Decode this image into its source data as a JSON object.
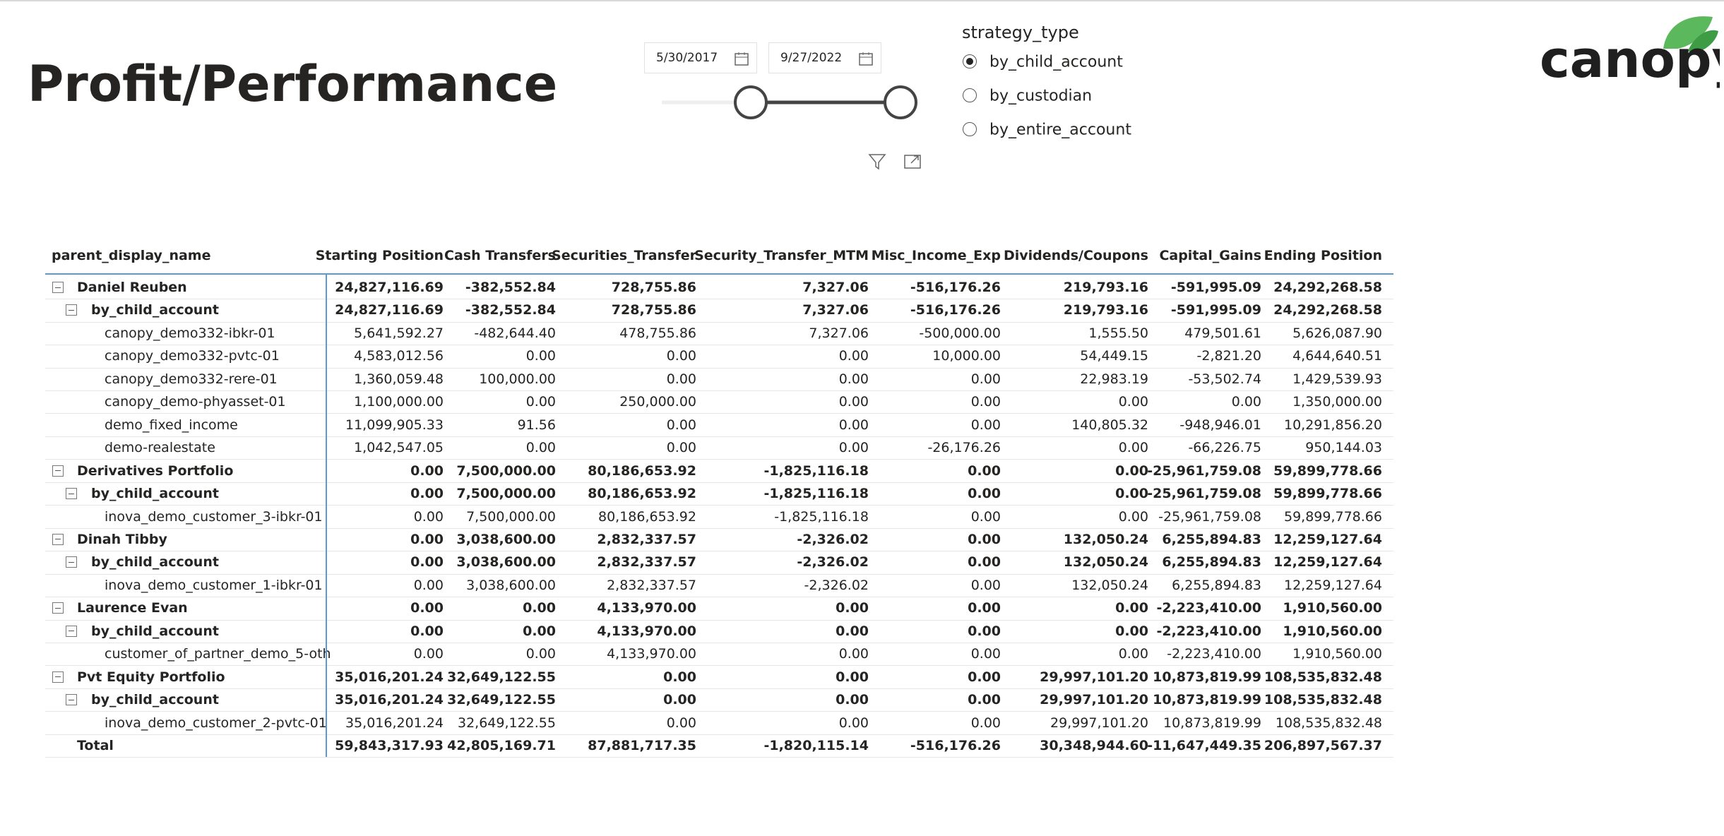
{
  "header": {
    "title": "Profit/Performance",
    "logo": "canopy"
  },
  "date_filter": {
    "start": "5/30/2017",
    "end": "9/27/2022"
  },
  "strategy_filter": {
    "label": "strategy_type",
    "options": [
      "by_child_account",
      "by_custodian",
      "by_entire_account"
    ],
    "selected": 0
  },
  "table": {
    "columns": [
      "parent_display_name",
      "Starting Position",
      "Cash Transfers",
      "Securities_Transfer",
      "Security_Transfer_MTM",
      "Misc_Income_Exp",
      "Dividends/Coupons",
      "Capital_Gains",
      "Ending Position"
    ],
    "groups": [
      {
        "name": "Daniel Reuben",
        "values": [
          "24,827,116.69",
          "-382,552.84",
          "728,755.86",
          "7,327.06",
          "-516,176.26",
          "219,793.16",
          "-591,995.09",
          "24,292,268.58"
        ],
        "subgroups": [
          {
            "name": "by_child_account",
            "values": [
              "24,827,116.69",
              "-382,552.84",
              "728,755.86",
              "7,327.06",
              "-516,176.26",
              "219,793.16",
              "-591,995.09",
              "24,292,268.58"
            ],
            "rows": [
              {
                "name": "canopy_demo332-ibkr-01",
                "values": [
                  "5,641,592.27",
                  "-482,644.40",
                  "478,755.86",
                  "7,327.06",
                  "-500,000.00",
                  "1,555.50",
                  "479,501.61",
                  "5,626,087.90"
                ]
              },
              {
                "name": "canopy_demo332-pvtc-01",
                "values": [
                  "4,583,012.56",
                  "0.00",
                  "0.00",
                  "0.00",
                  "10,000.00",
                  "54,449.15",
                  "-2,821.20",
                  "4,644,640.51"
                ]
              },
              {
                "name": "canopy_demo332-rere-01",
                "values": [
                  "1,360,059.48",
                  "100,000.00",
                  "0.00",
                  "0.00",
                  "0.00",
                  "22,983.19",
                  "-53,502.74",
                  "1,429,539.93"
                ]
              },
              {
                "name": "canopy_demo-phyasset-01",
                "values": [
                  "1,100,000.00",
                  "0.00",
                  "250,000.00",
                  "0.00",
                  "0.00",
                  "0.00",
                  "0.00",
                  "1,350,000.00"
                ]
              },
              {
                "name": "demo_fixed_income",
                "values": [
                  "11,099,905.33",
                  "91.56",
                  "0.00",
                  "0.00",
                  "0.00",
                  "140,805.32",
                  "-948,946.01",
                  "10,291,856.20"
                ]
              },
              {
                "name": "demo-realestate",
                "values": [
                  "1,042,547.05",
                  "0.00",
                  "0.00",
                  "0.00",
                  "-26,176.26",
                  "0.00",
                  "-66,226.75",
                  "950,144.03"
                ]
              }
            ]
          }
        ]
      },
      {
        "name": "Derivatives Portfolio",
        "values": [
          "0.00",
          "7,500,000.00",
          "80,186,653.92",
          "-1,825,116.18",
          "0.00",
          "0.00",
          "-25,961,759.08",
          "59,899,778.66"
        ],
        "subgroups": [
          {
            "name": "by_child_account",
            "values": [
              "0.00",
              "7,500,000.00",
              "80,186,653.92",
              "-1,825,116.18",
              "0.00",
              "0.00",
              "-25,961,759.08",
              "59,899,778.66"
            ],
            "rows": [
              {
                "name": "inova_demo_customer_3-ibkr-01",
                "values": [
                  "0.00",
                  "7,500,000.00",
                  "80,186,653.92",
                  "-1,825,116.18",
                  "0.00",
                  "0.00",
                  "-25,961,759.08",
                  "59,899,778.66"
                ]
              }
            ]
          }
        ]
      },
      {
        "name": "Dinah Tibby",
        "values": [
          "0.00",
          "3,038,600.00",
          "2,832,337.57",
          "-2,326.02",
          "0.00",
          "132,050.24",
          "6,255,894.83",
          "12,259,127.64"
        ],
        "subgroups": [
          {
            "name": "by_child_account",
            "values": [
              "0.00",
              "3,038,600.00",
              "2,832,337.57",
              "-2,326.02",
              "0.00",
              "132,050.24",
              "6,255,894.83",
              "12,259,127.64"
            ],
            "rows": [
              {
                "name": "inova_demo_customer_1-ibkr-01",
                "values": [
                  "0.00",
                  "3,038,600.00",
                  "2,832,337.57",
                  "-2,326.02",
                  "0.00",
                  "132,050.24",
                  "6,255,894.83",
                  "12,259,127.64"
                ]
              }
            ]
          }
        ]
      },
      {
        "name": "Laurence Evan",
        "values": [
          "0.00",
          "0.00",
          "4,133,970.00",
          "0.00",
          "0.00",
          "0.00",
          "-2,223,410.00",
          "1,910,560.00"
        ],
        "subgroups": [
          {
            "name": "by_child_account",
            "values": [
              "0.00",
              "0.00",
              "4,133,970.00",
              "0.00",
              "0.00",
              "0.00",
              "-2,223,410.00",
              "1,910,560.00"
            ],
            "rows": [
              {
                "name": "customer_of_partner_demo_5-oth",
                "values": [
                  "0.00",
                  "0.00",
                  "4,133,970.00",
                  "0.00",
                  "0.00",
                  "0.00",
                  "-2,223,410.00",
                  "1,910,560.00"
                ]
              }
            ]
          }
        ]
      },
      {
        "name": "Pvt Equity Portfolio",
        "values": [
          "35,016,201.24",
          "32,649,122.55",
          "0.00",
          "0.00",
          "0.00",
          "29,997,101.20",
          "10,873,819.99",
          "108,535,832.48"
        ],
        "subgroups": [
          {
            "name": "by_child_account",
            "values": [
              "35,016,201.24",
              "32,649,122.55",
              "0.00",
              "0.00",
              "0.00",
              "29,997,101.20",
              "10,873,819.99",
              "108,535,832.48"
            ],
            "rows": [
              {
                "name": "inova_demo_customer_2-pvtc-01",
                "values": [
                  "35,016,201.24",
                  "32,649,122.55",
                  "0.00",
                  "0.00",
                  "0.00",
                  "29,997,101.20",
                  "10,873,819.99",
                  "108,535,832.48"
                ]
              }
            ]
          }
        ]
      }
    ],
    "total": {
      "name": "Total",
      "values": [
        "59,843,317.93",
        "42,805,169.71",
        "87,881,717.35",
        "-1,820,115.14",
        "-516,176.26",
        "30,348,944.60",
        "-11,647,449.35",
        "206,897,567.37"
      ]
    }
  }
}
